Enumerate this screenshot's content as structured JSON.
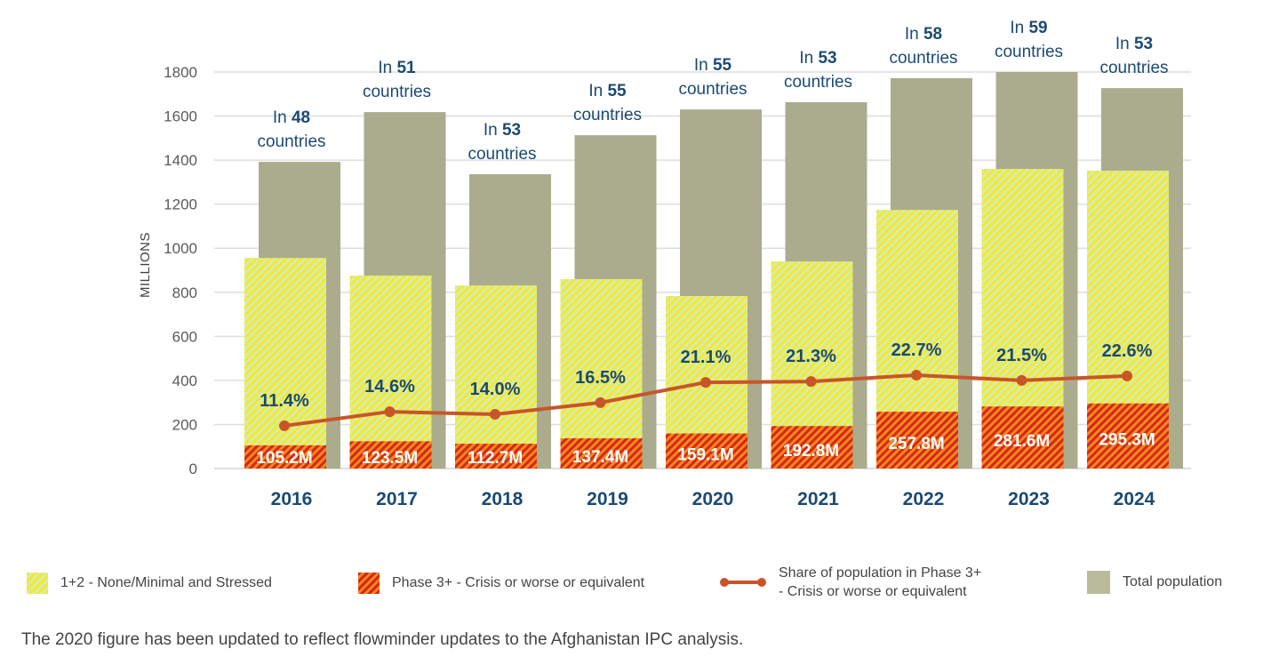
{
  "chart_data": {
    "type": "bar",
    "title": "",
    "xlabel": "",
    "ylabel": "MILLIONS",
    "ylim": [
      0,
      1800
    ],
    "yticks": [
      0,
      200,
      400,
      600,
      800,
      1000,
      1200,
      1400,
      1600,
      1800
    ],
    "grid": true,
    "categories": [
      "2016",
      "2017",
      "2018",
      "2019",
      "2020",
      "2021",
      "2022",
      "2023",
      "2024"
    ],
    "series": [
      {
        "name": "Total population",
        "type": "bar",
        "color": "#abac8e",
        "values": [
          1392,
          1618,
          1336,
          1513,
          1630,
          1663,
          1772,
          1800,
          1727
        ]
      },
      {
        "name": "1+2 - None/Minimal and Stressed",
        "type": "bar",
        "color": "#f5e92a",
        "values": [
          956,
          876,
          831,
          860,
          783,
          940,
          1174,
          1360,
          1352
        ]
      },
      {
        "name": "Phase 3+ - Crisis or worse or equivalent",
        "type": "bar",
        "color": "#d8261a",
        "values": [
          105.2,
          123.5,
          112.7,
          137.4,
          159.1,
          192.8,
          257.8,
          281.6,
          295.3
        ]
      },
      {
        "name": "Share of population in Phase 3+ - Crisis or worse or equivalent",
        "type": "line",
        "color": "#c8552a",
        "values": [
          11.4,
          14.6,
          14.0,
          16.5,
          21.1,
          21.3,
          22.7,
          21.5,
          22.6
        ],
        "plot_positions": [
          194,
          258,
          246,
          299,
          391,
          395,
          424,
          400,
          420
        ]
      }
    ],
    "phase3_labels": [
      "105.2M",
      "123.5M",
      "112.7M",
      "137.4M",
      "159.1M",
      "192.8M",
      "257.8M",
      "281.6M",
      "295.3M"
    ],
    "share_labels": [
      "11.4%",
      "14.6%",
      "14.0%",
      "16.5%",
      "21.1%",
      "21.3%",
      "22.7%",
      "21.5%",
      "22.6%"
    ],
    "country_counts": [
      48,
      51,
      53,
      55,
      55,
      53,
      58,
      59,
      53
    ],
    "country_prefix": "In",
    "country_suffix": "countries",
    "legend_placement": "bottom"
  },
  "legend": [
    {
      "label": "1+2 - None/Minimal and Stressed"
    },
    {
      "label": "Phase 3+ - Crisis or worse or equivalent"
    },
    {
      "label_line1": "Share of population in Phase 3+",
      "label_line2": "- Crisis or worse or equivalent"
    },
    {
      "label": "Total population"
    }
  ],
  "footnote": "The 2020 figure has been updated to reflect flowminder updates to the Afghanistan IPC analysis."
}
